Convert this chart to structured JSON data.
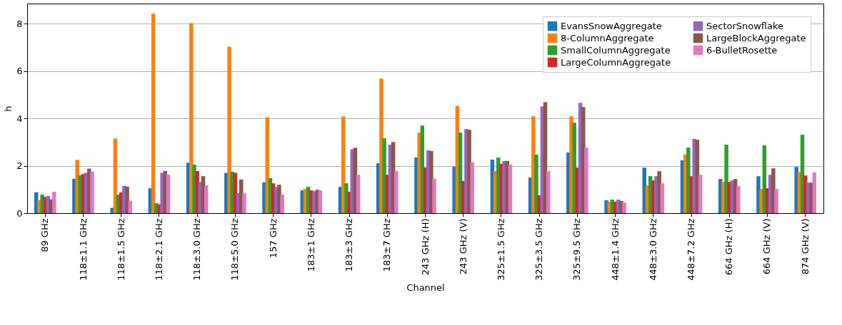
{
  "chart_data": {
    "type": "bar",
    "xlabel": "Channel",
    "ylabel": "h",
    "categories": [
      "89 GHz",
      "118±1.1 GHz",
      "118±1.5 GHz",
      "118±2.1 GHz",
      "118±3.0 GHz",
      "118±5.0 GHz",
      "157 GHz",
      "183±1 GHz",
      "183±3 GHz",
      "183±7 GHz",
      "243 GHz (H)",
      "243 GHz (V)",
      "325±1.5 GHz",
      "325±3.5 GHz",
      "325±9.5 GHz",
      "448±1.4 GHz",
      "448±3.0 GHz",
      "448±7.2 GHz",
      "664 GHz (H)",
      "664 GHz (V)",
      "874 GHz (V)"
    ],
    "series": [
      {
        "name": "EvansSnowAggregate",
        "color": "#1f77b4",
        "values": [
          0.88,
          1.45,
          0.22,
          1.05,
          2.13,
          1.7,
          1.3,
          0.96,
          1.11,
          2.1,
          2.35,
          1.96,
          2.26,
          1.5,
          2.56,
          0.54,
          1.92,
          2.23,
          1.44,
          1.56,
          1.95
        ]
      },
      {
        "name": "8-ColumnAggregate",
        "color": "#ff7f0e",
        "values": [
          0.55,
          2.25,
          3.15,
          8.42,
          8.02,
          7.03,
          4.05,
          1.02,
          4.08,
          5.68,
          3.4,
          4.52,
          1.78,
          4.09,
          4.09,
          0.48,
          1.17,
          2.47,
          1.32,
          1.02,
          1.74
        ]
      },
      {
        "name": "SmallColumnAggregate",
        "color": "#2ca02c",
        "values": [
          0.78,
          1.6,
          0.78,
          0.42,
          2.05,
          1.75,
          1.48,
          1.11,
          1.26,
          3.16,
          3.7,
          3.4,
          2.35,
          2.47,
          3.82,
          0.57,
          1.56,
          2.77,
          2.89,
          2.86,
          3.31
        ]
      },
      {
        "name": "LargeColumnAggregate",
        "color": "#d62728",
        "values": [
          0.68,
          1.65,
          0.88,
          0.37,
          1.78,
          1.7,
          1.26,
          0.96,
          0.9,
          1.62,
          1.93,
          1.36,
          2.08,
          0.75,
          1.92,
          0.48,
          1.38,
          1.56,
          1.32,
          1.05,
          1.59
        ]
      },
      {
        "name": "SectorSnowflake",
        "color": "#9467bd",
        "values": [
          0.72,
          1.7,
          1.15,
          1.7,
          1.32,
          0.85,
          1.11,
          0.93,
          2.7,
          2.89,
          2.65,
          3.55,
          2.2,
          4.51,
          4.66,
          0.57,
          1.56,
          3.13,
          1.38,
          1.62,
          1.29
        ]
      },
      {
        "name": "LargeBlockAggregate",
        "color": "#8c564b",
        "values": [
          0.58,
          1.88,
          1.12,
          1.78,
          1.56,
          1.42,
          1.2,
          0.99,
          2.76,
          3.0,
          2.62,
          3.52,
          2.2,
          4.69,
          4.48,
          0.51,
          1.77,
          3.1,
          1.44,
          1.89,
          1.29
        ]
      },
      {
        "name": "6-BulletRosette",
        "color": "#e377c2",
        "values": [
          0.9,
          1.75,
          0.52,
          1.63,
          1.17,
          0.85,
          0.78,
          0.96,
          1.62,
          1.78,
          1.45,
          2.14,
          2.05,
          1.77,
          2.77,
          0.45,
          1.26,
          1.62,
          1.14,
          1.02,
          1.72
        ]
      }
    ],
    "ylim": [
      0,
      8.85
    ],
    "yticks": [
      0,
      2,
      4,
      6,
      8
    ],
    "grid": "y",
    "legend": "top right"
  }
}
